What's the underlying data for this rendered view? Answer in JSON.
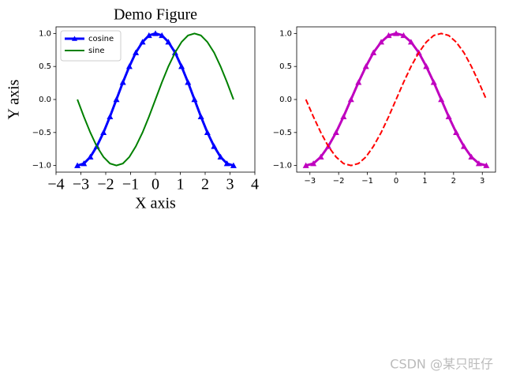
{
  "chart_data": [
    {
      "type": "line",
      "title": "Demo Figure",
      "x_label": "X axis",
      "y_label": "Y axis",
      "x": [
        -3.14,
        -2.88,
        -2.62,
        -2.36,
        -2.09,
        -1.83,
        -1.57,
        -1.31,
        -1.05,
        -0.79,
        -0.52,
        -0.26,
        0,
        0.26,
        0.52,
        0.79,
        1.05,
        1.31,
        1.57,
        1.83,
        2.09,
        2.36,
        2.62,
        2.88,
        3.14
      ],
      "series": [
        {
          "name": "cosine",
          "color": "#0000ff",
          "marker": "^",
          "linestyle": "solid",
          "values": [
            -1,
            -0.97,
            -0.87,
            -0.71,
            -0.5,
            -0.26,
            0,
            0.26,
            0.5,
            0.71,
            0.87,
            0.97,
            1,
            0.97,
            0.87,
            0.71,
            0.5,
            0.26,
            0,
            -0.26,
            -0.5,
            -0.71,
            -0.87,
            -0.97,
            -1
          ]
        },
        {
          "name": "sine",
          "color": "#008000",
          "linestyle": "solid",
          "values": [
            0,
            -0.26,
            -0.5,
            -0.71,
            -0.87,
            -0.97,
            -1,
            -0.97,
            -0.87,
            -0.71,
            -0.5,
            -0.26,
            0,
            0.26,
            0.5,
            0.71,
            0.87,
            0.97,
            1,
            0.97,
            0.87,
            0.71,
            0.5,
            0.26,
            0
          ]
        }
      ],
      "xlim": [
        -4,
        4
      ],
      "xticks": [
        {
          "value": -4,
          "label": "−4"
        },
        {
          "value": -3,
          "label": "−3"
        },
        {
          "value": -2,
          "label": "−2"
        },
        {
          "value": -1,
          "label": "−1"
        },
        0,
        1,
        2,
        3,
        4
      ],
      "ylim": [
        -1.1,
        1.1
      ],
      "yticks": [
        {
          "value": -1,
          "label": "−1.0"
        },
        {
          "value": -0.5,
          "label": "−0.5"
        },
        {
          "value": 0,
          "label": "0.0"
        },
        {
          "value": 0.5,
          "label": "0.5"
        },
        {
          "value": 1,
          "label": "1.0"
        }
      ],
      "legend": "upper left"
    },
    {
      "type": "line",
      "x": [
        -3.14,
        -2.88,
        -2.62,
        -2.36,
        -2.09,
        -1.83,
        -1.57,
        -1.31,
        -1.05,
        -0.79,
        -0.52,
        -0.26,
        0,
        0.26,
        0.52,
        0.79,
        1.05,
        1.31,
        1.57,
        1.83,
        2.09,
        2.36,
        2.62,
        2.88,
        3.14
      ],
      "series": [
        {
          "color": "#bf00bf",
          "marker": "^",
          "linestyle": "solid",
          "values": [
            -1,
            -0.97,
            -0.87,
            -0.71,
            -0.5,
            -0.26,
            0,
            0.26,
            0.5,
            0.71,
            0.87,
            0.97,
            1,
            0.97,
            0.87,
            0.71,
            0.5,
            0.26,
            0,
            -0.26,
            -0.5,
            -0.71,
            -0.87,
            -0.97,
            -1
          ]
        },
        {
          "color": "#ff0000",
          "linestyle": "dashed",
          "values": [
            0,
            -0.26,
            -0.5,
            -0.71,
            -0.87,
            -0.97,
            -1,
            -0.97,
            -0.87,
            -0.71,
            -0.5,
            -0.26,
            0,
            0.26,
            0.5,
            0.71,
            0.87,
            0.97,
            1,
            0.97,
            0.87,
            0.71,
            0.5,
            0.26,
            0
          ]
        }
      ],
      "xlim": [
        -3.46,
        3.46
      ],
      "xticks": [
        {
          "value": -3,
          "label": "−3"
        },
        {
          "value": -2,
          "label": "−2"
        },
        {
          "value": -1,
          "label": "−1"
        },
        0,
        1,
        2,
        3
      ],
      "ylim": [
        -1.1,
        1.1
      ],
      "yticks": [
        {
          "value": -1,
          "label": "−1.0"
        },
        {
          "value": -0.5,
          "label": "−0.5"
        },
        {
          "value": 0,
          "label": "0.0"
        },
        {
          "value": 0.5,
          "label": "0.5"
        },
        {
          "value": 1,
          "label": "1.0"
        }
      ]
    }
  ],
  "watermark": "CSDN @某只旺仔"
}
